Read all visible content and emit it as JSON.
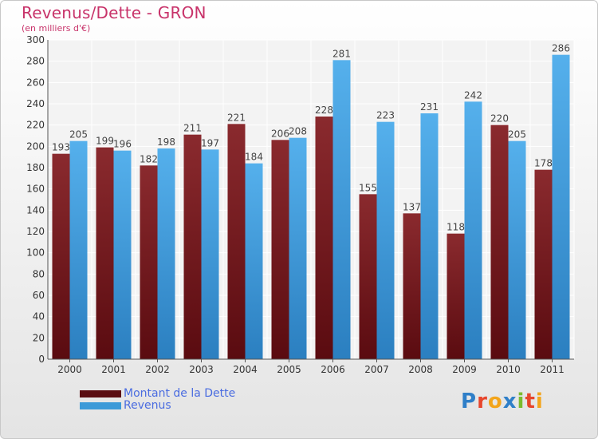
{
  "header": {
    "title": "Revenus/Dette - GRON",
    "subtitle": "(en milliers d'€)"
  },
  "chart_data": {
    "type": "bar",
    "categories": [
      "2000",
      "2001",
      "2002",
      "2003",
      "2004",
      "2005",
      "2006",
      "2007",
      "2008",
      "2009",
      "2010",
      "2011"
    ],
    "series": [
      {
        "name": "Montant de la Dette",
        "values": [
          193,
          199,
          182,
          211,
          221,
          206,
          228,
          155,
          137,
          118,
          220,
          178
        ],
        "color": "#7b1e24"
      },
      {
        "name": "Revenus",
        "values": [
          205,
          196,
          198,
          197,
          184,
          208,
          281,
          223,
          231,
          242,
          205,
          286
        ],
        "color": "#3d9ad8"
      }
    ],
    "ylim": [
      0,
      300
    ],
    "yticks": [
      0,
      20,
      40,
      60,
      80,
      100,
      120,
      140,
      160,
      180,
      200,
      220,
      240,
      260,
      280,
      300
    ],
    "grid": true,
    "legend_position": "bottom-left"
  },
  "legend": {
    "items": [
      {
        "label": "Montant de la Dette",
        "color": "#5a0d12"
      },
      {
        "label": "Revenus",
        "color": "#3d9ad8"
      }
    ]
  },
  "logo": {
    "letters": [
      {
        "ch": "P",
        "color": "#2f7fc8"
      },
      {
        "ch": "r",
        "color": "#e7462c"
      },
      {
        "ch": "o",
        "color": "#f3a51b"
      },
      {
        "ch": "x",
        "color": "#2f7fc8"
      },
      {
        "ch": "i",
        "color": "#7bbb2e"
      },
      {
        "ch": "t",
        "color": "#e7462c"
      },
      {
        "ch": "i",
        "color": "#f3a51b"
      }
    ]
  }
}
